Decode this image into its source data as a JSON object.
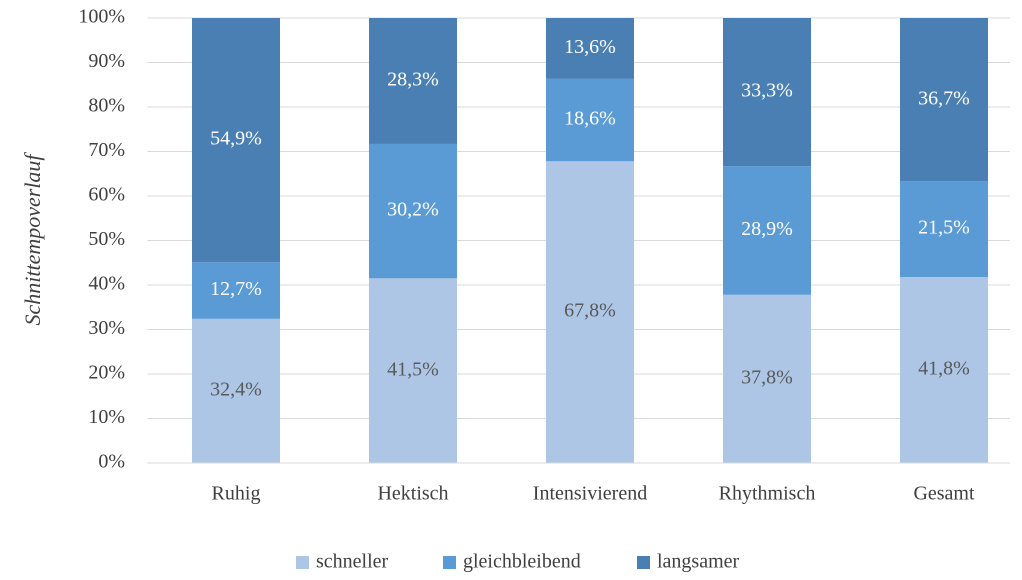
{
  "chart_data": {
    "type": "stacked_bar",
    "y_label": "Schnittempoverlauf",
    "categories": [
      "Ruhig",
      "Hektisch",
      "Intensivierend",
      "Rhythmisch",
      "Gesamt"
    ],
    "series": [
      {
        "name": "schneller",
        "color": "#adc6e6",
        "label_color": "#595959",
        "values": [
          32.4,
          41.5,
          67.8,
          37.8,
          41.8
        ],
        "value_labels": [
          "32,4%",
          "41,5%",
          "67,8%",
          "37,8%",
          "41,8%"
        ]
      },
      {
        "name": "gleichbleibend",
        "color": "#5b9bd5",
        "label_color": "#ffffff",
        "values": [
          12.7,
          30.2,
          18.6,
          28.9,
          21.5
        ],
        "value_labels": [
          "12,7%",
          "30,2%",
          "18,6%",
          "28,9%",
          "21,5%"
        ]
      },
      {
        "name": "langsamer",
        "color": "#4a7fb3",
        "label_color": "#ffffff",
        "values": [
          54.9,
          28.3,
          13.6,
          33.3,
          36.7
        ],
        "value_labels": [
          "54,9%",
          "28,3%",
          "13,6%",
          "33,3%",
          "36,7%"
        ]
      }
    ],
    "ylim": [
      0,
      100
    ],
    "yticks": [
      {
        "value": 0,
        "label": "0%"
      },
      {
        "value": 10,
        "label": "10%"
      },
      {
        "value": 20,
        "label": "20%"
      },
      {
        "value": 30,
        "label": "30%"
      },
      {
        "value": 40,
        "label": "40%"
      },
      {
        "value": 50,
        "label": "50%"
      },
      {
        "value": 60,
        "label": "60%"
      },
      {
        "value": 70,
        "label": "70%"
      },
      {
        "value": 80,
        "label": "80%"
      },
      {
        "value": 90,
        "label": "90%"
      },
      {
        "value": 100,
        "label": "100%"
      }
    ],
    "grid": true,
    "legend": "bottom"
  }
}
